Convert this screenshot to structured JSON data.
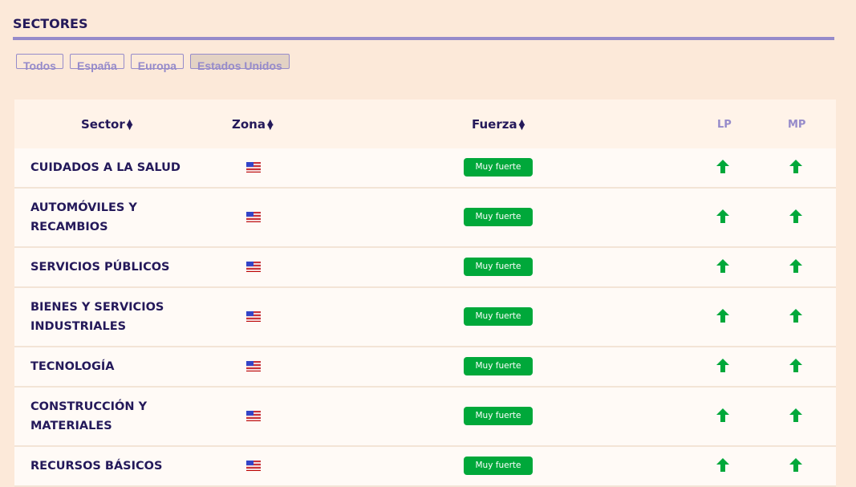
{
  "title": "SECTORES",
  "filters": [
    {
      "label": "Todos"
    },
    {
      "label": "España"
    },
    {
      "label": "Europa"
    },
    {
      "label": "Estados Unidos",
      "active": true
    }
  ],
  "columns": {
    "sector": "Sector",
    "zona": "Zona",
    "fuerza": "Fuerza",
    "lp": "LP",
    "mp": "MP"
  },
  "colors": {
    "accent": "#968bca",
    "strong": "#00a83a",
    "text": "#24195a"
  },
  "rows": [
    {
      "sector": "CUIDADOS A LA SALUD",
      "zona": "us-flag",
      "fuerza": "Muy fuerte",
      "lp": "up",
      "mp": "up"
    },
    {
      "sector": "AUTOMÓVILES Y RECAMBIOS",
      "zona": "us-flag",
      "fuerza": "Muy fuerte",
      "lp": "up",
      "mp": "up"
    },
    {
      "sector": "SERVICIOS PÚBLICOS",
      "zona": "us-flag",
      "fuerza": "Muy fuerte",
      "lp": "up",
      "mp": "up"
    },
    {
      "sector": "BIENES Y SERVICIOS INDUSTRIALES",
      "zona": "us-flag",
      "fuerza": "Muy fuerte",
      "lp": "up",
      "mp": "up"
    },
    {
      "sector": "TECNOLOGÍA",
      "zona": "us-flag",
      "fuerza": "Muy fuerte",
      "lp": "up",
      "mp": "up"
    },
    {
      "sector": "CONSTRUCCIÓN Y MATERIALES",
      "zona": "us-flag",
      "fuerza": "Muy fuerte",
      "lp": "up",
      "mp": "up"
    },
    {
      "sector": "RECURSOS BÁSICOS",
      "zona": "us-flag",
      "fuerza": "Muy fuerte",
      "lp": "up",
      "mp": "up"
    }
  ]
}
